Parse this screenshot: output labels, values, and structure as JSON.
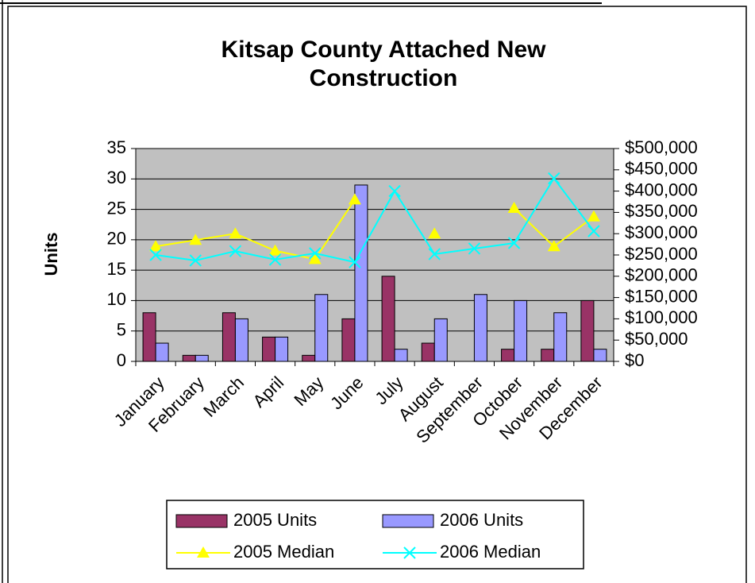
{
  "chart_data": {
    "type": "bar_line",
    "title": [
      "Kitsap County Attached New",
      "Construction"
    ],
    "y_label": "Units",
    "categories": [
      "January",
      "February",
      "March",
      "April",
      "May",
      "June",
      "July",
      "August",
      "September",
      "October",
      "November",
      "December"
    ],
    "series": [
      {
        "name": "2005 Units",
        "type": "bar",
        "color": "#993366",
        "values": [
          8,
          1,
          8,
          4,
          1,
          7,
          14,
          3,
          null,
          2,
          2,
          10
        ]
      },
      {
        "name": "2006 Units",
        "type": "bar",
        "color": "#9999ff",
        "values": [
          3,
          1,
          7,
          4,
          11,
          29,
          2,
          7,
          11,
          10,
          8,
          2
        ]
      },
      {
        "name": "2005 Median",
        "type": "line",
        "marker": "triangle",
        "axis": "y2",
        "color": "#ffff00",
        "values": [
          270000,
          285000,
          300000,
          260000,
          240000,
          380000,
          null,
          300000,
          null,
          360000,
          270000,
          340000
        ]
      },
      {
        "name": "2006 Median",
        "type": "line",
        "marker": "x",
        "axis": "y2",
        "color": "#00ffff",
        "values": [
          250000,
          237000,
          259000,
          239000,
          254000,
          233000,
          400000,
          252000,
          265000,
          278000,
          430000,
          306000
        ]
      }
    ],
    "ylim": [
      0,
      35
    ],
    "yticks": [
      0,
      5,
      10,
      15,
      20,
      25,
      30,
      35
    ],
    "y2lim": [
      0,
      500000
    ],
    "y2ticks": [
      {
        "value": 0,
        "label": "$0"
      },
      {
        "value": 50000,
        "label": "$50,000"
      },
      {
        "value": 100000,
        "label": "$100,000"
      },
      {
        "value": 150000,
        "label": "$150,000"
      },
      {
        "value": 200000,
        "label": "$200,000"
      },
      {
        "value": 250000,
        "label": "$250,000"
      },
      {
        "value": 300000,
        "label": "$300,000"
      },
      {
        "value": 350000,
        "label": "$350,000"
      },
      {
        "value": 400000,
        "label": "$400,000"
      },
      {
        "value": 450000,
        "label": "$450,000"
      },
      {
        "value": 500000,
        "label": "$500,000"
      }
    ],
    "plot_background": "#c0c0c0"
  }
}
